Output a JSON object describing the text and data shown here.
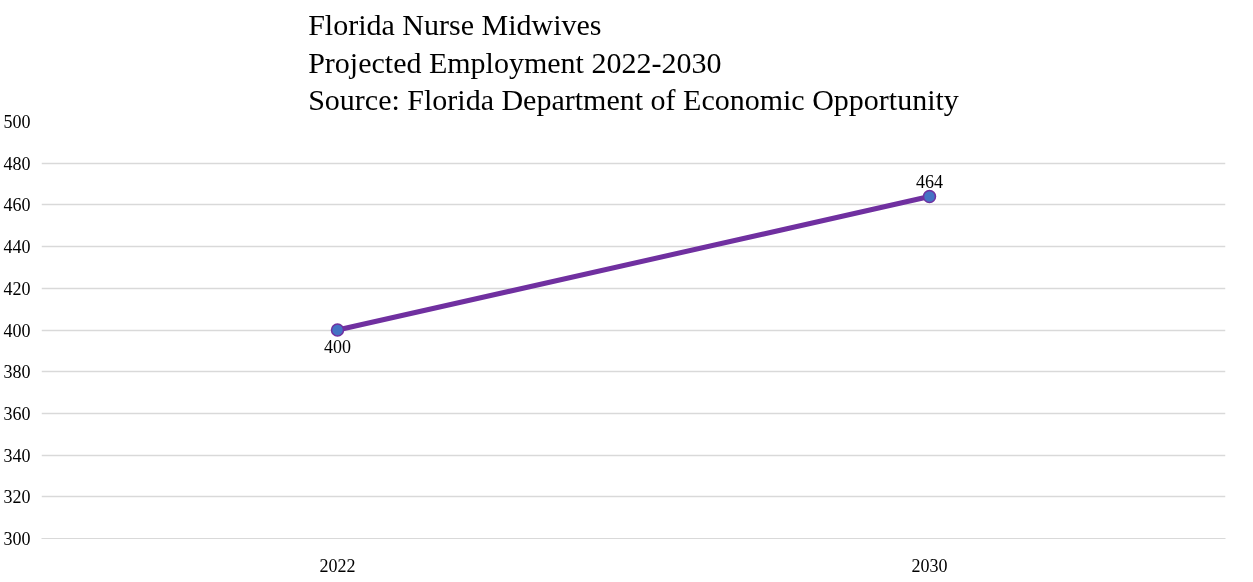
{
  "chart_data": {
    "type": "line",
    "title": "Florida Nurse Midwives\nProjected Employment 2022-2030\nSource: Florida Department of Economic Opportunity",
    "categories": [
      "2022",
      "2030"
    ],
    "series": [
      {
        "color": "#7030a0",
        "values": [
          400,
          464
        ]
      }
    ],
    "ylim": [
      300,
      500
    ],
    "yticks": [
      300,
      320,
      340,
      360,
      380,
      400,
      420,
      440,
      460,
      480,
      500
    ],
    "grid": "y",
    "marker": "circle",
    "data_labels": true
  }
}
